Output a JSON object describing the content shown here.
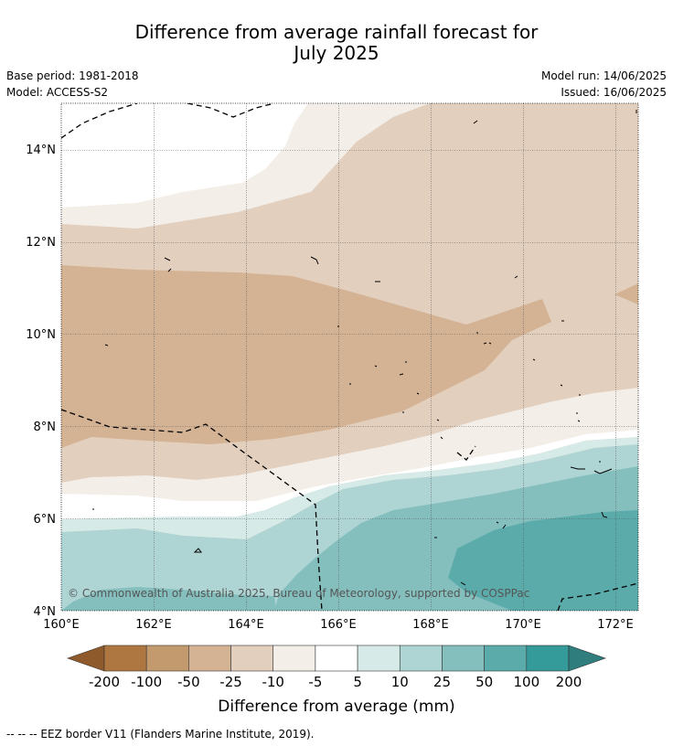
{
  "title_line1": "Difference from average rainfall forecast for",
  "title_line2": "July 2025",
  "base_period": "Base period: 1981-2018",
  "model": "Model: ACCESS-S2",
  "model_run": "Model run: 14/06/2025",
  "issued": "Issued: 16/06/2025",
  "copyright": "© Commonwealth of Australia 2025, Bureau of Meteorology, supported by COSPPac",
  "footer": "--  --  -- EEZ border V11 (Flanders Marine Institute, 2019).",
  "map": {
    "lon_range": [
      160,
      172.5
    ],
    "lat_range": [
      4,
      15
    ],
    "lon_ticks": [
      "160°E",
      "162°E",
      "164°E",
      "166°E",
      "168°E",
      "170°E",
      "172°E"
    ],
    "lat_ticks": [
      "4°N",
      "6°N",
      "8°N",
      "10°N",
      "12°N",
      "14°N"
    ],
    "gridlines": true
  },
  "colorbar": {
    "label": "Difference from average (mm)",
    "tick_labels": [
      "-200",
      "-100",
      "-50",
      "-25",
      "-10",
      "-5",
      "5",
      "10",
      "25",
      "50",
      "100",
      "200"
    ],
    "colors": [
      "#8f5a2b",
      "#ae7741",
      "#c29a6e",
      "#d4b394",
      "#e3cfbe",
      "#f3eee8",
      "#ffffff",
      "#d6eae8",
      "#aed5d4",
      "#84bfbe",
      "#5babab",
      "#349a9a",
      "#2f7d7d"
    ],
    "extend": "both"
  }
}
